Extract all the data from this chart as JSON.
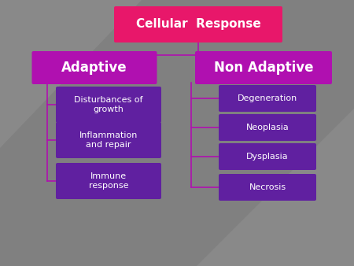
{
  "background_color": "#808080",
  "title": "Cellular  Response",
  "title_box_color": "#e8176a",
  "title_text_color": "#ffffff",
  "title_fontsize": 11,
  "adaptive_label": "Adaptive",
  "non_adaptive_label": "Non Adaptive",
  "header_box_color": "#b010b0",
  "header_text_color": "#ffffff",
  "header_fontsize": 12,
  "left_items": [
    "Disturbances of\ngrowth",
    "Inflammation\nand repair",
    "Immune\nresponse"
  ],
  "right_items": [
    "Degeneration",
    "Neoplasia",
    "Dysplasia",
    "Necrosis"
  ],
  "item_box_color": "#6020a0",
  "item_text_color": "#ffffff",
  "item_fontsize": 8,
  "line_color": "#b010b0",
  "line_width": 1.2
}
